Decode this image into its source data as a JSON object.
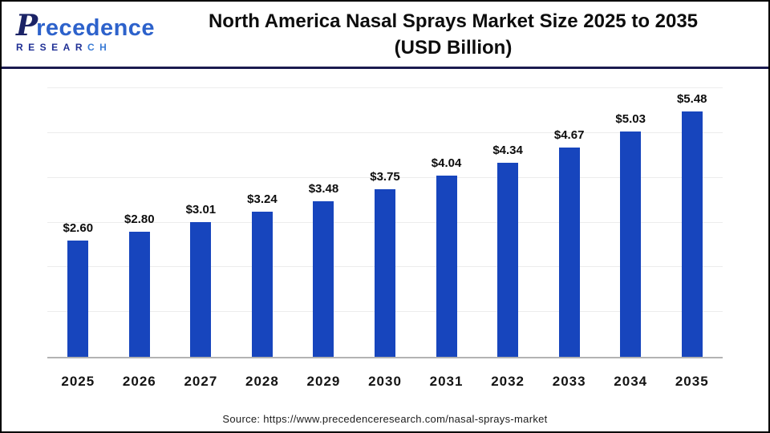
{
  "header": {
    "logo": {
      "initial": "P",
      "wordmark_rest": "recedence",
      "subtitle_left": "RESEAR",
      "subtitle_right": "CH"
    },
    "title_line1": "North America Nasal Sprays Market Size 2025 to 2035",
    "title_line2": "(USD Billion)"
  },
  "chart_data": {
    "type": "bar",
    "title": "North America Nasal Sprays Market Size 2025 to 2035 (USD Billion)",
    "categories": [
      "2025",
      "2026",
      "2027",
      "2028",
      "2029",
      "2030",
      "2031",
      "2032",
      "2033",
      "2034",
      "2035"
    ],
    "values": [
      2.6,
      2.8,
      3.01,
      3.24,
      3.48,
      3.75,
      4.04,
      4.34,
      4.67,
      5.03,
      5.48
    ],
    "value_labels": [
      "$2.60",
      "$2.80",
      "$3.01",
      "$3.24",
      "$3.48",
      "$3.75",
      "$4.04",
      "$4.34",
      "$4.67",
      "$5.03",
      "$5.48"
    ],
    "xlabel": "",
    "ylabel": "",
    "ylim": [
      0,
      6
    ],
    "gridline_step": 1,
    "grid": true,
    "legend_position": "none",
    "bar_color": "#1745bd"
  },
  "footer": {
    "source": "Source: https://www.precedenceresearch.com/nasal-sprays-market"
  }
}
